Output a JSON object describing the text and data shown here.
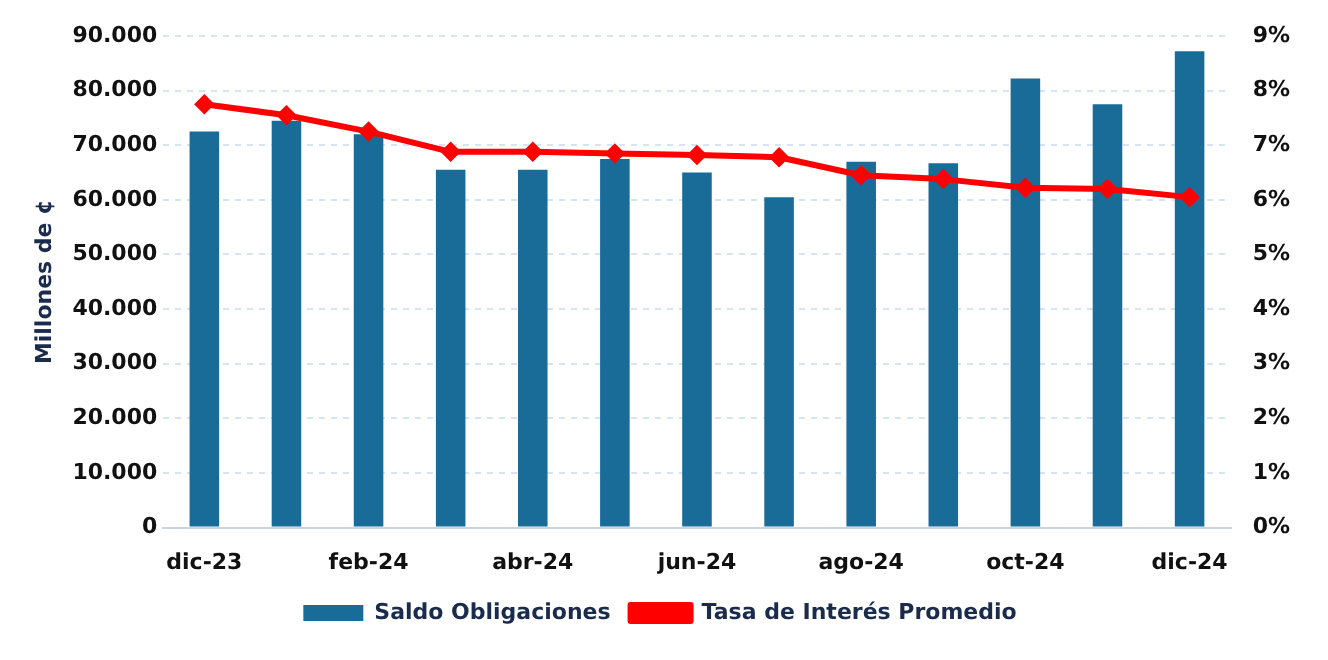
{
  "chart_data": {
    "type": "bar",
    "ylabel": "Millones de ¢",
    "categories": [
      "dic-23",
      null,
      "feb-24",
      null,
      "abr-24",
      null,
      "jun-24",
      null,
      "ago-24",
      null,
      "oct-24",
      null,
      "dic-24"
    ],
    "series": [
      {
        "name": "Saldo Obligaciones",
        "color": "#1a6c98",
        "values": [
          72500,
          74500,
          72000,
          65500,
          65500,
          67500,
          65000,
          60500,
          67000,
          66700,
          82200,
          77500,
          87200
        ]
      },
      {
        "name": "Tasa de Interés Promedio",
        "type": "line",
        "axis": "y2",
        "color": "#ff0000",
        "marker": "diamond",
        "values": [
          7.75,
          7.55,
          7.25,
          6.88,
          6.88,
          6.85,
          6.82,
          6.78,
          6.45,
          6.38,
          6.22,
          6.2,
          6.05
        ]
      }
    ],
    "ylim": [
      0,
      90000
    ],
    "yticks": [
      {
        "value": 0,
        "label": "0"
      },
      {
        "value": 10000,
        "label": "10.000"
      },
      {
        "value": 20000,
        "label": "20.000"
      },
      {
        "value": 30000,
        "label": "30.000"
      },
      {
        "value": 40000,
        "label": "40.000"
      },
      {
        "value": 50000,
        "label": "50.000"
      },
      {
        "value": 60000,
        "label": "60.000"
      },
      {
        "value": 70000,
        "label": "70.000"
      },
      {
        "value": 80000,
        "label": "80.000"
      },
      {
        "value": 90000,
        "label": "90.000"
      }
    ],
    "y2lim": [
      0,
      9
    ],
    "y2ticks": [
      {
        "value": 0,
        "label": "0%"
      },
      {
        "value": 1,
        "label": "1%"
      },
      {
        "value": 2,
        "label": "2%"
      },
      {
        "value": 3,
        "label": "3%"
      },
      {
        "value": 4,
        "label": "4%"
      },
      {
        "value": 5,
        "label": "5%"
      },
      {
        "value": 6,
        "label": "6%"
      },
      {
        "value": 7,
        "label": "7%"
      },
      {
        "value": 8,
        "label": "8%"
      },
      {
        "value": 9,
        "label": "9%"
      }
    ],
    "grid": "y",
    "legend": "bottom"
  }
}
